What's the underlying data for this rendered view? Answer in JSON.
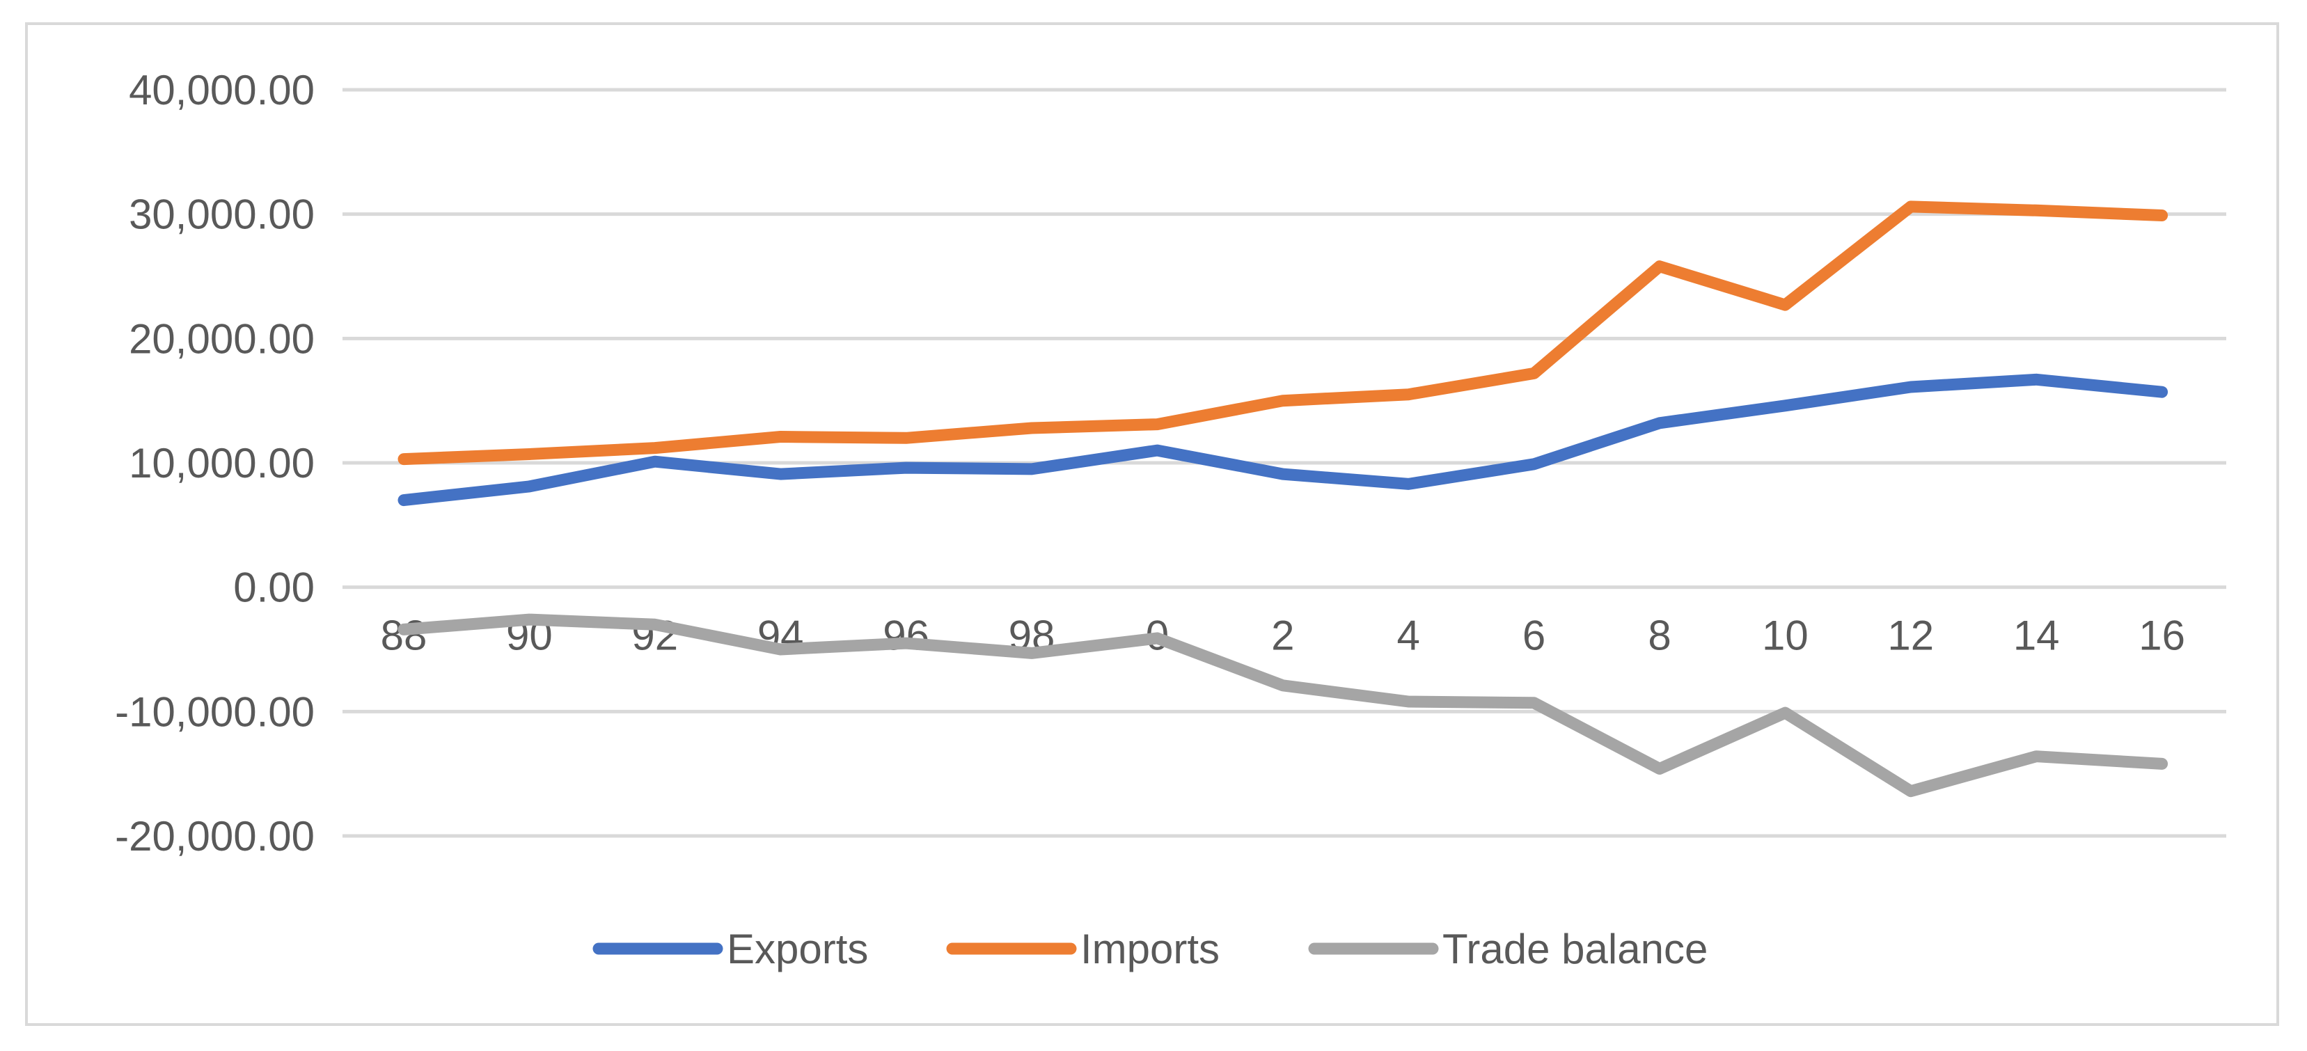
{
  "chart_data": {
    "type": "line",
    "title": "",
    "xlabel": "",
    "ylabel": "",
    "categories": [
      "88",
      "90",
      "92",
      "94",
      "96",
      "98",
      "0",
      "2",
      "4",
      "6",
      "8",
      "10",
      "12",
      "14",
      "16"
    ],
    "ylim": [
      -20000,
      40000
    ],
    "yticks": [
      -20000,
      -10000,
      0,
      10000,
      20000,
      30000,
      40000
    ],
    "ytick_labels": [
      "-20,000.00",
      "-10,000.00",
      "0.00",
      "10,000.00",
      "20,000.00",
      "30,000.00",
      "40,000.00"
    ],
    "grid": true,
    "legend": "bottom",
    "series": [
      {
        "name": "Exports",
        "color": "#4472c4",
        "values": [
          7000,
          8100,
          10100,
          9100,
          9600,
          9500,
          11000,
          9100,
          8300,
          9900,
          13200,
          14600,
          16100,
          16700,
          15700
        ]
      },
      {
        "name": "Imports",
        "color": "#ed7d31",
        "values": [
          10300,
          10700,
          11200,
          12100,
          12000,
          12800,
          13100,
          15000,
          15500,
          17200,
          25800,
          22700,
          30600,
          30300,
          29900
        ]
      },
      {
        "name": "Trade balance",
        "color": "#a5a5a5",
        "values": [
          -3400,
          -2600,
          -3000,
          -5000,
          -4500,
          -5300,
          -4100,
          -7900,
          -9200,
          -9300,
          -14600,
          -10100,
          -16400,
          -13600,
          -14200
        ]
      }
    ]
  }
}
